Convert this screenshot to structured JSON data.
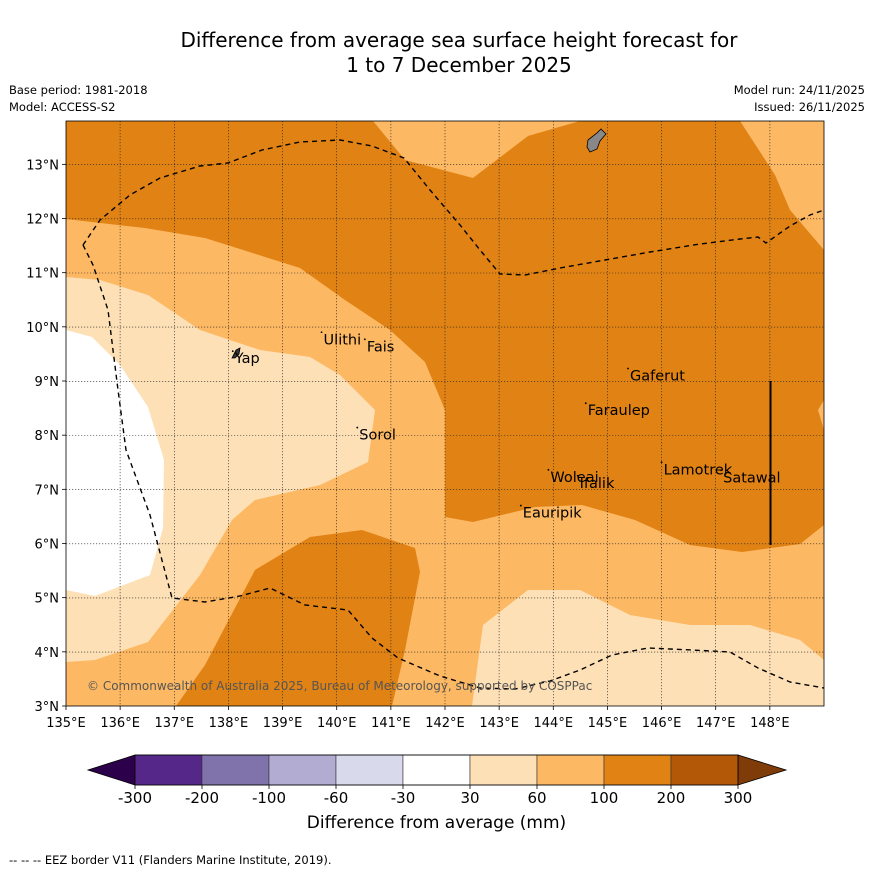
{
  "title_line1": "Difference from average sea surface height forecast for",
  "title_line2": "1 to 7 December 2025",
  "meta_left": [
    "Base period: 1981-2018",
    "Model: ACCESS-S2"
  ],
  "meta_right": [
    "Model run: 24/11/2025",
    "Issued: 26/11/2025"
  ],
  "copyright": "© Commonwealth of Australia 2025, Bureau of Meteorology, supported by COSPPac",
  "footer": "--  --  -- EEZ border V11 (Flanders Marine Institute, 2019).",
  "map": {
    "lon_range": [
      135.0,
      149.0
    ],
    "lat_range": [
      3.0,
      13.8
    ],
    "lon_ticks": [
      {
        "value": 135,
        "label": "135°E"
      },
      {
        "value": 136,
        "label": "136°E"
      },
      {
        "value": 137,
        "label": "137°E"
      },
      {
        "value": 138,
        "label": "138°E"
      },
      {
        "value": 139,
        "label": "139°E"
      },
      {
        "value": 140,
        "label": "140°E"
      },
      {
        "value": 141,
        "label": "141°E"
      },
      {
        "value": 142,
        "label": "142°E"
      },
      {
        "value": 143,
        "label": "143°E"
      },
      {
        "value": 144,
        "label": "144°E"
      },
      {
        "value": 145,
        "label": "145°E"
      },
      {
        "value": 146,
        "label": "146°E"
      },
      {
        "value": 147,
        "label": "147°E"
      },
      {
        "value": 148,
        "label": "148°E"
      }
    ],
    "lat_ticks": [
      {
        "value": 3,
        "label": "3°N"
      },
      {
        "value": 4,
        "label": "4°N"
      },
      {
        "value": 5,
        "label": "5°N"
      },
      {
        "value": 6,
        "label": "6°N"
      },
      {
        "value": 7,
        "label": "7°N"
      },
      {
        "value": 8,
        "label": "8°N"
      },
      {
        "value": 9,
        "label": "9°N"
      },
      {
        "value": 10,
        "label": "10°N"
      },
      {
        "value": 11,
        "label": "11°N"
      },
      {
        "value": 12,
        "label": "12°N"
      },
      {
        "value": 13,
        "label": "13°N"
      }
    ],
    "places": [
      {
        "name": "Yap",
        "lon": 138.08,
        "lat": 9.55
      },
      {
        "name": "Ulithi",
        "lon": 139.72,
        "lat": 9.9
      },
      {
        "name": "Fais",
        "lon": 140.52,
        "lat": 9.77
      },
      {
        "name": "Sorol",
        "lon": 140.38,
        "lat": 8.14
      },
      {
        "name": "Gaferut",
        "lon": 145.38,
        "lat": 9.23
      },
      {
        "name": "Faraulep",
        "lon": 144.6,
        "lat": 8.59
      },
      {
        "name": "Woleai",
        "lon": 143.91,
        "lat": 7.36
      },
      {
        "name": "Ifalik",
        "lon": 144.45,
        "lat": 7.25
      },
      {
        "name": "Lamotrek",
        "lon": 146.0,
        "lat": 7.5
      },
      {
        "name": "Satawal",
        "lon": 147.1,
        "lat": 7.35
      },
      {
        "name": "Eauripik",
        "lon": 143.4,
        "lat": 6.7
      }
    ]
  },
  "colorbar": {
    "title": "Difference from average (mm)",
    "tick_labels": [
      "-300",
      "-200",
      "-100",
      "-60",
      "-30",
      "30",
      "60",
      "100",
      "200",
      "300"
    ],
    "colors": {
      "under": "#2d004b",
      "bins": [
        "#542788",
        "#8073ac",
        "#b2abd2",
        "#d8daeb",
        "#ffffff",
        "#fee0b6",
        "#fdb863",
        "#e08214",
        "#b35806"
      ],
      "over": "#7f3b08"
    }
  }
}
